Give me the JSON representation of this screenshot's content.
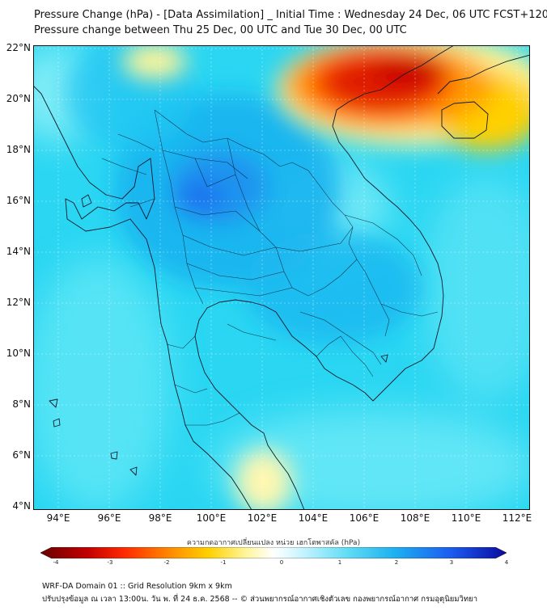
{
  "title": {
    "line1": "Pressure Change (hPa) - [Data Assimilation] _ Initial Time : Wednesday 24 Dec, 06 UTC FCST+120",
    "line2": "Pressure change between Thu 25 Dec, 00 UTC and Tue 30 Dec, 00 UTC"
  },
  "map": {
    "lon_range": [
      93,
      112.5
    ],
    "lat_range": [
      4,
      22.2
    ],
    "lat_labels": [
      "22°N",
      "20°N",
      "18°N",
      "16°N",
      "14°N",
      "12°N",
      "10°N",
      "8°N",
      "6°N",
      "4°N"
    ],
    "lon_labels": [
      "94°E",
      "96°E",
      "98°E",
      "100°E",
      "102°E",
      "104°E",
      "106°E",
      "108°E",
      "110°E",
      "112°E"
    ],
    "background_color": "#2ad6f2",
    "gridlines": true
  },
  "colorbar": {
    "title": "ความกดอากาศเปลี่ยนแปลง หน่วย เฮกโตพาสคัล (hPa)",
    "range": [
      -4,
      4
    ],
    "ticks": [
      "-4",
      "-3",
      "-2",
      "-1",
      "0",
      "1",
      "2",
      "3",
      "4"
    ],
    "colors": [
      "#6b0000",
      "#c00000",
      "#ff2a00",
      "#ff8c00",
      "#ffd000",
      "#fff59a",
      "#ffffff",
      "#c8f4ff",
      "#5fdcf5",
      "#1eb0f0",
      "#1c5cf0",
      "#0a0aa0"
    ]
  },
  "footer": {
    "line1": "WRF-DA Domain 01 :: Grid Resolution 9km x 9km",
    "line2": "ปรับปรุงข้อมูล ณ เวลา 13:00น. วัน พ. ที่ 24 ธ.ค. 2568 -- © ส่วนพยากรณ์อากาศเชิงตัวเลข กองพยากรณ์อากาศ กรมอุตุนิยมวิทยา"
  }
}
